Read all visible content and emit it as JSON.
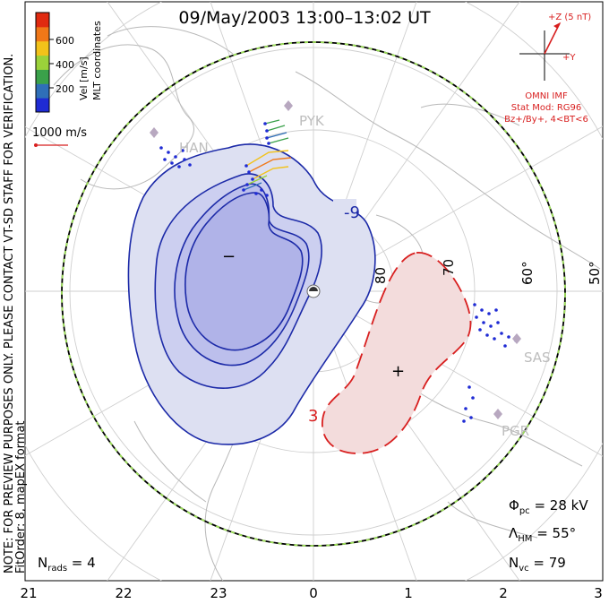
{
  "title": "09/May/2003 13:00–13:02 UT",
  "side_text": {
    "line1": "NOTE: FOR PREVIEW PURPOSES ONLY. PLEASE CONTACT VT-SD STAFF FOR VERIFICATION.",
    "line2": "FitOrder: 8, mapEX format"
  },
  "colorbar": {
    "label": "Vel [m/s]",
    "coord_label": "MLT coordinates",
    "ticks": [
      "200",
      "400",
      "600"
    ],
    "colors": [
      "#1f2bd4",
      "#2f6fb8",
      "#3aa14a",
      "#9bd23a",
      "#f2c21a",
      "#f07818",
      "#e02a10"
    ]
  },
  "vector_scale": {
    "label": "1000 m/s"
  },
  "imf": {
    "bz_label": "+Z (5 nT)",
    "by_label": "+Y",
    "lines": [
      "OMNI IMF",
      "Stat Mod: RG96",
      "Bz+/By+, 4<BT<6"
    ]
  },
  "stats": {
    "phi_sym": "Φ",
    "phi_sub": "pc",
    "phi_val": " = 28 kV",
    "lam_sym": "Λ",
    "lam_sub": "HM",
    "lam_val": " = 55°",
    "nvc_sym": "N",
    "nvc_sub": "vc",
    "nvc_val": " = 79",
    "nrad_sym": "N",
    "nrad_sub": "rads",
    "nrad_val": " = 4"
  },
  "station_labels": [
    "PYK",
    "HAN",
    "SAS",
    "PGR"
  ],
  "lat_labels": [
    "80",
    "70",
    "60°",
    "50°"
  ],
  "chart_data": {
    "type": "polar contour map",
    "mlt_ticks": [
      "21",
      "22",
      "23",
      "0",
      "1",
      "2",
      "3"
    ],
    "hm_boundary_latitude": 55,
    "contours": [
      {
        "label": "-9",
        "sign": "negative",
        "level": -9
      },
      {
        "label": "3",
        "sign": "positive",
        "level": 3
      }
    ],
    "markers": [
      {
        "label": "−",
        "type": "potential minimum"
      },
      {
        "label": "+",
        "type": "potential maximum"
      }
    ],
    "fill_colors": {
      "negative": "#dde0f2",
      "negative_inner": "#c4c7ec",
      "negative_core": "#b3b6e8",
      "positive": "#f3dcdc"
    }
  }
}
